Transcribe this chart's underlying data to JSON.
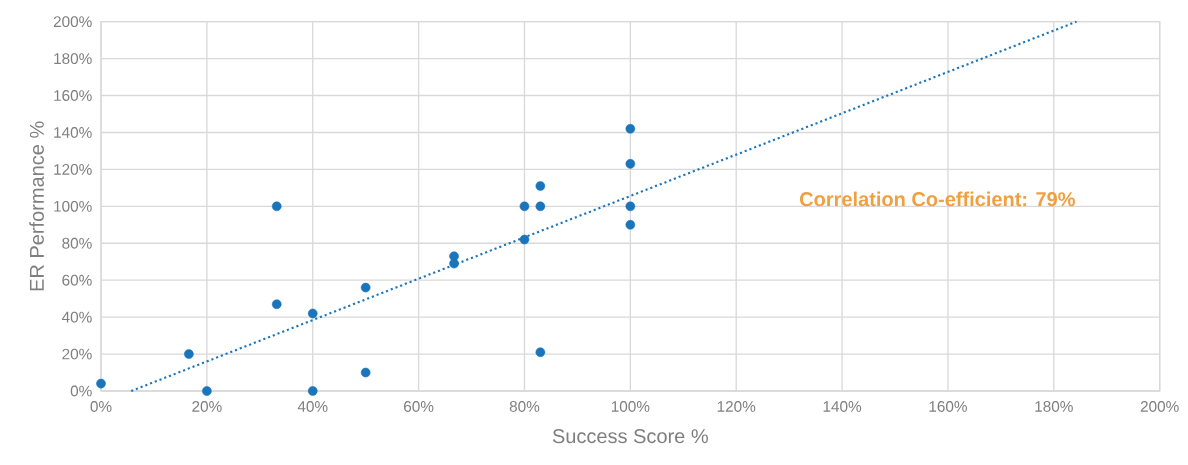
{
  "chart_data": {
    "type": "scatter",
    "xlabel": "Success Score %",
    "ylabel": "ER Performance %",
    "annotations": [
      "Correlation Co-efficient: 79%"
    ],
    "series": [
      {
        "color": "#1a75bb",
        "marker": "circle",
        "x": [
          0,
          20,
          16.6,
          33.2,
          33.2,
          40,
          40,
          50,
          50,
          66.7,
          66.7,
          80,
          80,
          83,
          83,
          83,
          100,
          100,
          100,
          100
        ],
        "values": [
          4,
          0,
          20,
          100,
          47,
          42,
          0,
          56,
          10,
          73,
          69,
          100,
          82,
          111,
          100,
          21,
          142,
          123,
          100,
          90
        ]
      },
      {
        "type": "line",
        "color": "#1a75bb",
        "marker": "none",
        "line_style": "dotted",
        "x": [
          5.7,
          184.3
        ],
        "values": [
          0,
          200
        ]
      }
    ],
    "xlim": [
      0,
      200
    ],
    "ylim": [
      0,
      200
    ],
    "xticks": [
      {
        "value": 0,
        "label": "0%"
      },
      {
        "value": 20,
        "label": "20%"
      },
      {
        "value": 40,
        "label": "40%"
      },
      {
        "value": 60,
        "label": "60%"
      },
      {
        "value": 80,
        "label": "80%"
      },
      {
        "value": 100,
        "label": "100%"
      },
      {
        "value": 120,
        "label": "120%"
      },
      {
        "value": 140,
        "label": "140%"
      },
      {
        "value": 160,
        "label": "160%"
      },
      {
        "value": 180,
        "label": "180%"
      },
      {
        "value": 200,
        "label": "200%"
      }
    ],
    "yticks": [
      {
        "value": 0,
        "label": "0%"
      },
      {
        "value": 20,
        "label": "20%"
      },
      {
        "value": 40,
        "label": "40%"
      },
      {
        "value": 60,
        "label": "60%"
      },
      {
        "value": 80,
        "label": "80%"
      },
      {
        "value": 100,
        "label": "100%"
      },
      {
        "value": 120,
        "label": "120%"
      },
      {
        "value": 140,
        "label": "140%"
      },
      {
        "value": 160,
        "label": "160%"
      },
      {
        "value": 180,
        "label": "180%"
      },
      {
        "value": 200,
        "label": "200%"
      }
    ],
    "grid": true,
    "legend": false
  }
}
